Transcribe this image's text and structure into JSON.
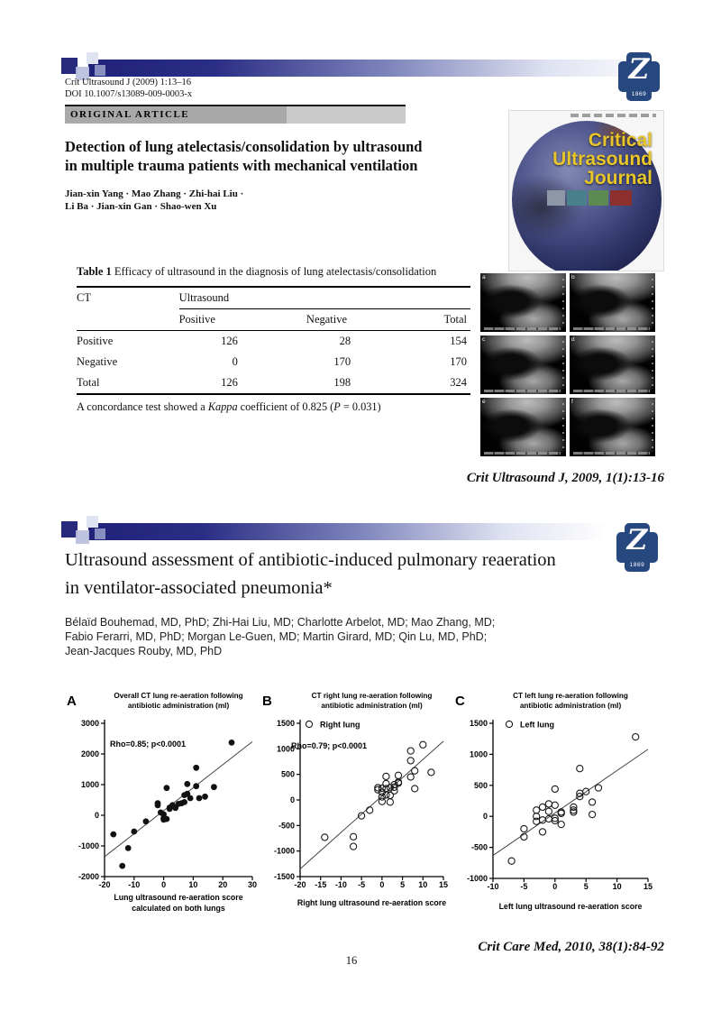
{
  "colors": {
    "accent_navy": "#23237a",
    "logo_blue": "#27477f",
    "cover_yellow": "#e8c62a"
  },
  "logo": {
    "letter": "Z",
    "year": "1869"
  },
  "page": {
    "number": "16"
  },
  "paper1": {
    "journal_ref": "Crit Ultrasound J (2009) 1:13–16",
    "doi": "DOI 10.1007/s13089-009-0003-x",
    "article_type": "ORIGINAL ARTICLE",
    "title_line1": "Detection of lung atelectasis/consolidation by ultrasound",
    "title_line2": "in multiple trauma patients with mechanical ventilation",
    "authors_line1": "Jian-xin Yang · Mao Zhang · Zhi-hai Liu ·",
    "authors_line2": "Li Ba · Jian-xin Gan · Shao-wen Xu",
    "citation": "Crit Ultrasound J, 2009, 1(1):13-16",
    "cover": {
      "title_line1": "Critical",
      "title_line2": "Ultrasound",
      "title_line3": "Journal"
    },
    "table": {
      "caption_label": "Table 1",
      "caption_text": " Efficacy of ultrasound in the diagnosis of lung atelectasis/consolidation",
      "row_header": "CT",
      "col_group_header": "Ultrasound",
      "sub_headers": [
        "Positive",
        "Negative",
        "Total"
      ],
      "rows": [
        {
          "label": "Positive",
          "values": [
            "126",
            "28",
            "154"
          ]
        },
        {
          "label": "Negative",
          "values": [
            "0",
            "170",
            "170"
          ]
        },
        {
          "label": "Total",
          "values": [
            "126",
            "198",
            "324"
          ]
        }
      ],
      "footnote_pre": "A concordance test showed a ",
      "footnote_italic": "Kappa",
      "footnote_mid": " coefficient of 0.825 (",
      "footnote_p": "P",
      "footnote_post": " = 0.031)"
    },
    "ultrasound_labels": [
      "a",
      "b",
      "c",
      "d",
      "e",
      "f"
    ]
  },
  "paper2": {
    "title_line1": "Ultrasound assessment of antibiotic-induced pulmonary reaeration",
    "title_line2": "in ventilator-associated pneumonia*",
    "authors_line1": "Bélaïd Bouhemad, MD, PhD; Zhi-Hai Liu, MD; Charlotte Arbelot, MD; Mao Zhang, MD;",
    "authors_line2": "Fabio Ferarri, MD, PhD; Morgan Le-Guen, MD; Martin Girard, MD; Qin Lu, MD, PhD;",
    "authors_line3": "Jean-Jacques Rouby, MD, PhD",
    "citation": "Crit Care Med, 2010, 38(1):84-92"
  },
  "chart_data": [
    {
      "type": "scatter",
      "panel": "A",
      "title": [
        "Overall CT lung re-aeration following",
        "antibiotic administration (ml)"
      ],
      "annotation": "Rho=0.85; p<0.0001",
      "xlabel": [
        "Lung ultrasound re-aeration score",
        "calculated on both lungs"
      ],
      "legend": null,
      "marker": "filled",
      "xlim": [
        -20,
        30
      ],
      "ylim": [
        -2000,
        3000
      ],
      "xticks": [
        -20,
        -10,
        0,
        10,
        20,
        30
      ],
      "yticks": [
        -2000,
        -1000,
        0,
        1000,
        2000,
        3000
      ],
      "trendline": {
        "x1": -20,
        "y1": -1350,
        "x2": 30,
        "y2": 2400
      },
      "points": [
        [
          -17,
          -620
        ],
        [
          -14,
          -1650
        ],
        [
          -12,
          -1070
        ],
        [
          -10,
          -530
        ],
        [
          -6,
          -200
        ],
        [
          -2,
          330
        ],
        [
          -2,
          390
        ],
        [
          -1,
          90
        ],
        [
          0,
          30
        ],
        [
          0,
          -90
        ],
        [
          0,
          -140
        ],
        [
          1,
          890
        ],
        [
          1,
          -120
        ],
        [
          2,
          250
        ],
        [
          2,
          210
        ],
        [
          3,
          300
        ],
        [
          3,
          330
        ],
        [
          4,
          240
        ],
        [
          5,
          370
        ],
        [
          6,
          390
        ],
        [
          7,
          430
        ],
        [
          7,
          660
        ],
        [
          8,
          1020
        ],
        [
          8,
          700
        ],
        [
          9,
          560
        ],
        [
          11,
          1550
        ],
        [
          11,
          950
        ],
        [
          12,
          560
        ],
        [
          14,
          610
        ],
        [
          17,
          920
        ],
        [
          23,
          2370
        ]
      ]
    },
    {
      "type": "scatter",
      "panel": "B",
      "title": [
        "CT right lung re-aeration following",
        "antibiotic administration (ml)"
      ],
      "annotation": "Rho=0.79; p<0.0001",
      "xlabel": [
        "Right lung ultrasound re-aeration score"
      ],
      "legend": "Right lung",
      "marker": "open",
      "xlim": [
        -20,
        15
      ],
      "ylim": [
        -1500,
        1500
      ],
      "xticks": [
        -20,
        -15,
        -10,
        -5,
        0,
        5,
        10,
        15
      ],
      "yticks": [
        -1500,
        -1000,
        -500,
        0,
        500,
        1000,
        1500
      ],
      "trendline": {
        "x1": -20,
        "y1": -1350,
        "x2": 15,
        "y2": 1150
      },
      "points": [
        [
          -14,
          -730
        ],
        [
          -7,
          -720
        ],
        [
          -7,
          -910
        ],
        [
          -5,
          -310
        ],
        [
          -3,
          -200
        ],
        [
          -1,
          240
        ],
        [
          -1,
          200
        ],
        [
          0,
          230
        ],
        [
          0,
          150
        ],
        [
          0,
          60
        ],
        [
          0,
          -30
        ],
        [
          1,
          460
        ],
        [
          1,
          320
        ],
        [
          1,
          220
        ],
        [
          1,
          100
        ],
        [
          2,
          240
        ],
        [
          2,
          90
        ],
        [
          2,
          -40
        ],
        [
          3,
          300
        ],
        [
          3,
          250
        ],
        [
          3,
          180
        ],
        [
          4,
          350
        ],
        [
          4,
          330
        ],
        [
          4,
          480
        ],
        [
          7,
          960
        ],
        [
          7,
          770
        ],
        [
          7,
          450
        ],
        [
          8,
          570
        ],
        [
          8,
          220
        ],
        [
          10,
          1080
        ],
        [
          12,
          540
        ]
      ]
    },
    {
      "type": "scatter",
      "panel": "C",
      "title": [
        "CT left lung re-aeration following",
        "antibiotic administration (ml)"
      ],
      "annotation": null,
      "xlabel": [
        "Left lung ultrasound re-aeration score"
      ],
      "legend": "Left lung",
      "marker": "open",
      "xlim": [
        -10,
        15
      ],
      "ylim": [
        -1000,
        1500
      ],
      "xticks": [
        -10,
        -5,
        0,
        5,
        10,
        15
      ],
      "yticks": [
        -1000,
        -500,
        0,
        500,
        1000,
        1500
      ],
      "trendline": {
        "x1": -10,
        "y1": -630,
        "x2": 15,
        "y2": 1080
      },
      "points": [
        [
          -7,
          -720
        ],
        [
          -5,
          -330
        ],
        [
          -5,
          -200
        ],
        [
          -3,
          100
        ],
        [
          -3,
          0
        ],
        [
          -3,
          -80
        ],
        [
          -2,
          150
        ],
        [
          -2,
          -250
        ],
        [
          -2,
          -60
        ],
        [
          -1,
          200
        ],
        [
          -1,
          80
        ],
        [
          -1,
          -40
        ],
        [
          0,
          440
        ],
        [
          0,
          180
        ],
        [
          0,
          -30
        ],
        [
          0,
          -70
        ],
        [
          1,
          50
        ],
        [
          1,
          70
        ],
        [
          1,
          -130
        ],
        [
          3,
          150
        ],
        [
          3,
          100
        ],
        [
          3,
          70
        ],
        [
          4,
          770
        ],
        [
          4,
          370
        ],
        [
          4,
          320
        ],
        [
          5,
          400
        ],
        [
          6,
          230
        ],
        [
          6,
          30
        ],
        [
          7,
          460
        ],
        [
          13,
          1280
        ]
      ]
    }
  ]
}
